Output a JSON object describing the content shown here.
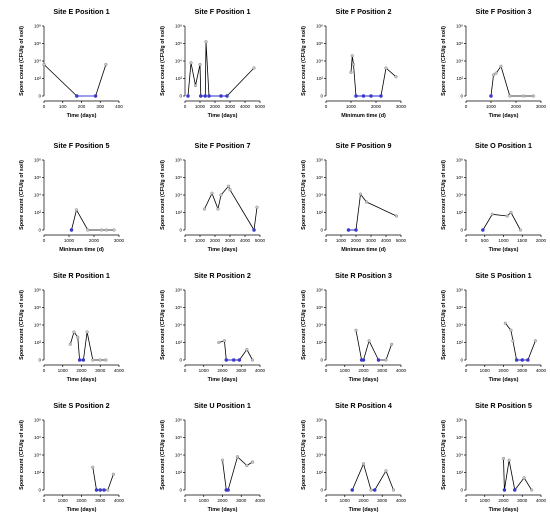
{
  "colors": {
    "point_grey": "#c8c8c8",
    "point_blue": "#3b3bd6",
    "line": "#000000"
  },
  "chart_data": [
    {
      "type": "line",
      "title": "Site E Position 1",
      "ylabel": "Spore count (CFU/g of soil)",
      "xlabel": "Time (days)",
      "xticks": [
        0,
        100,
        200,
        300,
        400
      ],
      "yticks": [
        "0",
        "10²",
        "10⁴",
        "10⁶",
        "10⁸"
      ],
      "xlim": [
        0,
        400
      ],
      "ylim_log10": [
        0,
        8
      ],
      "points": [
        [
          0,
          3.6,
          "grey"
        ],
        [
          175,
          0,
          "blue"
        ],
        [
          275,
          0,
          "blue"
        ],
        [
          330,
          3.6,
          "grey"
        ]
      ]
    },
    {
      "type": "line",
      "title": "Site F Position 1",
      "ylabel": "Spore count (CFU/g of soil)",
      "xlabel": "Time (days)",
      "xticks": [
        0,
        1000,
        2000,
        3000,
        4000,
        5000
      ],
      "yticks": [
        "0",
        "10²",
        "10⁴",
        "10⁶",
        "10⁸"
      ],
      "xlim": [
        0,
        5000
      ],
      "ylim_log10": [
        0,
        8
      ],
      "points": [
        [
          200,
          0,
          "blue"
        ],
        [
          400,
          3.8,
          "grey"
        ],
        [
          700,
          1.2,
          "grey"
        ],
        [
          1000,
          3.6,
          "grey"
        ],
        [
          1050,
          0,
          "blue"
        ],
        [
          1350,
          0,
          "blue"
        ],
        [
          1400,
          6.2,
          "grey"
        ],
        [
          1600,
          0,
          "blue"
        ],
        [
          2400,
          0,
          "blue"
        ],
        [
          2800,
          0,
          "blue"
        ],
        [
          4600,
          3.2,
          "grey"
        ]
      ]
    },
    {
      "type": "line",
      "title": "Site F Position 2",
      "ylabel": "Spore count (CFU/g of soil)",
      "xlabel": "Minimum time (d)",
      "xticks": [
        0,
        1000,
        2000,
        3000
      ],
      "yticks": [
        "0",
        "10²",
        "10⁴",
        "10⁶",
        "10⁸"
      ],
      "xlim": [
        0,
        3000
      ],
      "ylim_log10": [
        0,
        8
      ],
      "points": [
        [
          1000,
          2.7,
          "grey"
        ],
        [
          1050,
          4.6,
          "grey"
        ],
        [
          1100,
          3.6,
          "grey"
        ],
        [
          1200,
          0,
          "blue"
        ],
        [
          1500,
          0,
          "blue"
        ],
        [
          1800,
          0,
          "blue"
        ],
        [
          2200,
          0,
          "blue"
        ],
        [
          2400,
          3.2,
          "grey"
        ],
        [
          2800,
          2.2,
          "grey"
        ]
      ]
    },
    {
      "type": "line",
      "title": "Site F Position 3",
      "ylabel": "Spore count (CFU/g of soil)",
      "xlabel": "Time (days)",
      "xticks": [
        0,
        1000,
        2000,
        3000
      ],
      "yticks": [
        "0",
        "10²",
        "10⁴",
        "10⁶",
        "10⁸"
      ],
      "xlim": [
        0,
        3000
      ],
      "ylim_log10": [
        0,
        8
      ],
      "points": [
        [
          1000,
          0,
          "blue"
        ],
        [
          1100,
          2.4,
          "grey"
        ],
        [
          1200,
          2.6,
          "grey"
        ],
        [
          1400,
          3.4,
          "grey"
        ],
        [
          1750,
          0,
          "grey"
        ],
        [
          2300,
          0,
          "grey"
        ],
        [
          2700,
          0,
          "grey"
        ]
      ]
    },
    {
      "type": "line",
      "title": "Site F Position 5",
      "ylabel": "Spore count (CFU/g of soil)",
      "xlabel": "Minimum time (d)",
      "xticks": [
        0,
        1000,
        2000,
        3000
      ],
      "yticks": [
        "0",
        "10²",
        "10⁴",
        "10⁶",
        "10⁸"
      ],
      "xlim": [
        0,
        3000
      ],
      "ylim_log10": [
        0,
        8
      ],
      "points": [
        [
          1100,
          0,
          "blue"
        ],
        [
          1300,
          2.3,
          "grey"
        ],
        [
          1750,
          0,
          "grey"
        ],
        [
          2300,
          0,
          "grey"
        ],
        [
          2500,
          0,
          "grey"
        ],
        [
          2800,
          0,
          "grey"
        ]
      ]
    },
    {
      "type": "line",
      "title": "Site F Position 7",
      "ylabel": "Spore count (CFU/g of soil)",
      "xlabel": "Time (days)",
      "xticks": [
        0,
        1000,
        2000,
        3000,
        4000,
        5000
      ],
      "yticks": [
        "0",
        "10²",
        "10⁴",
        "10⁶",
        "10⁸"
      ],
      "xlim": [
        0,
        5000
      ],
      "ylim_log10": [
        0,
        8
      ],
      "points": [
        [
          1300,
          2.4,
          "grey"
        ],
        [
          1800,
          4.2,
          "grey"
        ],
        [
          2200,
          2.4,
          "grey"
        ],
        [
          2400,
          4.0,
          "grey"
        ],
        [
          2900,
          5.0,
          "grey"
        ],
        [
          3000,
          4.6,
          "grey"
        ],
        [
          4600,
          0,
          "blue"
        ],
        [
          4800,
          2.6,
          "grey"
        ]
      ]
    },
    {
      "type": "line",
      "title": "Site F Position 9",
      "ylabel": "Spore count (CFU/g of soil)",
      "xlabel": "Minimum time (d)",
      "xticks": [
        0,
        1000,
        2000,
        3000,
        4000,
        5000
      ],
      "yticks": [
        "0",
        "10²",
        "10⁴",
        "10⁶",
        "10⁸"
      ],
      "xlim": [
        0,
        5000
      ],
      "ylim_log10": [
        0,
        8
      ],
      "points": [
        [
          1500,
          0,
          "blue"
        ],
        [
          2000,
          0,
          "blue"
        ],
        [
          2300,
          4.1,
          "grey"
        ],
        [
          2700,
          3.2,
          "grey"
        ],
        [
          4700,
          1.6,
          "grey"
        ]
      ]
    },
    {
      "type": "line",
      "title": "Site O Position 1",
      "ylabel": "Spore count (CFU/g of soil)",
      "xlabel": "Time (days)",
      "xticks": [
        0,
        500,
        1000,
        1500,
        2000
      ],
      "yticks": [
        "0",
        "10²",
        "10⁴",
        "10⁶",
        "10⁸"
      ],
      "xlim": [
        0,
        2000
      ],
      "ylim_log10": [
        0,
        8
      ],
      "points": [
        [
          450,
          0,
          "blue"
        ],
        [
          700,
          1.8,
          "grey"
        ],
        [
          1100,
          1.6,
          "grey"
        ],
        [
          1200,
          2.0,
          "grey"
        ],
        [
          1450,
          0,
          "grey"
        ]
      ]
    },
    {
      "type": "line",
      "title": "Site R Position 1",
      "ylabel": "Spore count (CFU/g of soil)",
      "xlabel": "Time (days)",
      "xticks": [
        0,
        1000,
        2000,
        3000,
        4000
      ],
      "yticks": [
        "0",
        "10²",
        "10⁴",
        "10⁶",
        "10⁸"
      ],
      "xlim": [
        0,
        4000
      ],
      "ylim_log10": [
        0,
        8
      ],
      "points": [
        [
          1400,
          1.8,
          "grey"
        ],
        [
          1600,
          3.2,
          "grey"
        ],
        [
          1800,
          2.6,
          "grey"
        ],
        [
          1900,
          0,
          "blue"
        ],
        [
          2100,
          0,
          "blue"
        ],
        [
          2300,
          3.2,
          "grey"
        ],
        [
          2600,
          0,
          "grey"
        ],
        [
          3000,
          0,
          "grey"
        ],
        [
          3300,
          0,
          "grey"
        ]
      ]
    },
    {
      "type": "line",
      "title": "Site R Position 2",
      "ylabel": "Spore count (CFU/g of soil)",
      "xlabel": "Time (days)",
      "xticks": [
        0,
        1000,
        2000,
        3000,
        4000
      ],
      "yticks": [
        "0",
        "10²",
        "10⁴",
        "10⁶",
        "10⁸"
      ],
      "xlim": [
        0,
        4000
      ],
      "ylim_log10": [
        0,
        8
      ],
      "points": [
        [
          1800,
          2.0,
          "grey"
        ],
        [
          2100,
          2.2,
          "grey"
        ],
        [
          2200,
          0,
          "blue"
        ],
        [
          2600,
          0,
          "blue"
        ],
        [
          2900,
          0,
          "blue"
        ],
        [
          3300,
          1.2,
          "grey"
        ],
        [
          3600,
          0,
          "grey"
        ]
      ]
    },
    {
      "type": "line",
      "title": "Site R Position 3",
      "ylabel": "Spore count (CFU/g of soil)",
      "xlabel": "Time (days)",
      "xticks": [
        0,
        1000,
        2000,
        3000,
        4000
      ],
      "yticks": [
        "0",
        "10²",
        "10⁴",
        "10⁶",
        "10⁸"
      ],
      "xlim": [
        0,
        4000
      ],
      "ylim_log10": [
        0,
        8
      ],
      "points": [
        [
          1600,
          3.4,
          "grey"
        ],
        [
          1900,
          0,
          "blue"
        ],
        [
          2000,
          0,
          "blue"
        ],
        [
          2300,
          2.2,
          "grey"
        ],
        [
          2800,
          0,
          "blue"
        ],
        [
          3200,
          0,
          "grey"
        ],
        [
          3500,
          1.8,
          "grey"
        ]
      ]
    },
    {
      "type": "line",
      "title": "Site S Position 1",
      "ylabel": "Spore count (CFU/g of soil)",
      "xlabel": "Time (days)",
      "xticks": [
        0,
        1000,
        2000,
        3000,
        4000
      ],
      "yticks": [
        "0",
        "10²",
        "10⁴",
        "10⁶",
        "10⁸"
      ],
      "xlim": [
        0,
        4000
      ],
      "ylim_log10": [
        0,
        8
      ],
      "points": [
        [
          2100,
          4.2,
          "grey"
        ],
        [
          2400,
          3.4,
          "grey"
        ],
        [
          2500,
          2.2,
          "grey"
        ],
        [
          2700,
          0,
          "blue"
        ],
        [
          3000,
          0,
          "blue"
        ],
        [
          3300,
          0,
          "blue"
        ],
        [
          3700,
          2.2,
          "grey"
        ]
      ]
    },
    {
      "type": "line",
      "title": "Site S Position 2",
      "ylabel": "Spore count (CFU/g of soil)",
      "xlabel": "Time (days)",
      "xticks": [
        0,
        1000,
        2000,
        3000,
        4000
      ],
      "yticks": [
        "0",
        "10²",
        "10⁴",
        "10⁶",
        "10⁸"
      ],
      "xlim": [
        0,
        4000
      ],
      "ylim_log10": [
        0,
        8
      ],
      "points": [
        [
          2600,
          2.6,
          "grey"
        ],
        [
          2800,
          0,
          "blue"
        ],
        [
          3000,
          0,
          "blue"
        ],
        [
          3200,
          0,
          "blue"
        ],
        [
          3400,
          0,
          "grey"
        ],
        [
          3700,
          1.8,
          "grey"
        ]
      ]
    },
    {
      "type": "line",
      "title": "Site U Position 1",
      "ylabel": "Spore count (CFU/g of soil)",
      "xlabel": "Time (days)",
      "xticks": [
        0,
        1000,
        2000,
        3000,
        4000
      ],
      "yticks": [
        "0",
        "10²",
        "10⁴",
        "10⁶",
        "10⁸"
      ],
      "xlim": [
        0,
        4000
      ],
      "ylim_log10": [
        0,
        8
      ],
      "points": [
        [
          2000,
          3.4,
          "grey"
        ],
        [
          2200,
          0,
          "blue"
        ],
        [
          2300,
          0,
          "blue"
        ],
        [
          2800,
          3.8,
          "grey"
        ],
        [
          3300,
          2.8,
          "grey"
        ],
        [
          3600,
          3.2,
          "grey"
        ]
      ]
    },
    {
      "type": "line",
      "title": "Site R Position 4",
      "ylabel": "Spore count (CFU/g of soil)",
      "xlabel": "Time (days)",
      "xticks": [
        0,
        1000,
        2000,
        3000,
        4000
      ],
      "yticks": [
        "0",
        "10²",
        "10⁴",
        "10⁶",
        "10⁸"
      ],
      "xlim": [
        0,
        4000
      ],
      "ylim_log10": [
        0,
        8
      ],
      "points": [
        [
          1400,
          0,
          "blue"
        ],
        [
          2000,
          3.0,
          "grey"
        ],
        [
          2400,
          0,
          "grey"
        ],
        [
          2600,
          0,
          "blue"
        ],
        [
          3200,
          2.2,
          "grey"
        ],
        [
          3600,
          0,
          "grey"
        ]
      ]
    },
    {
      "type": "line",
      "title": "Site R Position 5",
      "ylabel": "Spore count (CFU/g of soil)",
      "xlabel": "Time (days)",
      "xticks": [
        0,
        1000,
        2000,
        3000,
        4000
      ],
      "yticks": [
        "0",
        "10²",
        "10⁴",
        "10⁶",
        "10⁸"
      ],
      "xlim": [
        0,
        4000
      ],
      "ylim_log10": [
        0,
        8
      ],
      "points": [
        [
          2000,
          3.6,
          "grey"
        ],
        [
          2050,
          0,
          "blue"
        ],
        [
          2300,
          3.4,
          "grey"
        ],
        [
          2600,
          0,
          "blue"
        ],
        [
          3100,
          1.4,
          "grey"
        ],
        [
          3500,
          0,
          "grey"
        ]
      ]
    }
  ]
}
